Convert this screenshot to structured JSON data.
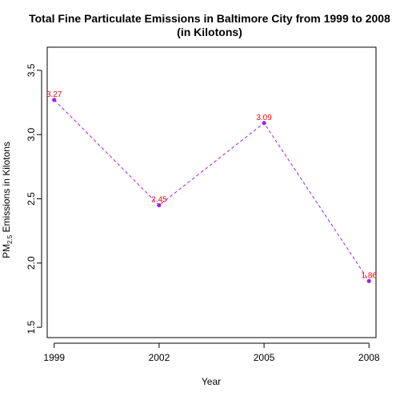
{
  "chart_data": {
    "type": "line",
    "title": "Total Fine Particulate Emissions in Baltimore City from 1999 to 2008",
    "subtitle": "(in Kilotons)",
    "xlabel": "Year",
    "ylabel_prefix": "PM",
    "ylabel_sub": "2.5",
    "ylabel_suffix": " Emissions in Kilotons",
    "x": [
      1999,
      2002,
      2005,
      2008
    ],
    "y": [
      3.27,
      2.45,
      3.09,
      1.86
    ],
    "data_labels": [
      "3.27",
      "2.45",
      "3.09",
      "1.86"
    ],
    "x_ticks": [
      1999,
      2002,
      2005,
      2008
    ],
    "x_tick_labels": [
      "1999",
      "2002",
      "2005",
      "2008"
    ],
    "y_ticks": [
      1.5,
      2.0,
      2.5,
      3.0,
      3.5
    ],
    "y_tick_labels": [
      "1.5",
      "2.0",
      "2.5",
      "3.0",
      "3.5"
    ],
    "xlim": [
      1998.8,
      2008.2
    ],
    "ylim": [
      1.42,
      3.68
    ],
    "grid": false,
    "legend": "none",
    "line_style": "dashed",
    "line_color": "#A020F0",
    "point_color": "#A020F0",
    "label_color": "#FF0000"
  }
}
